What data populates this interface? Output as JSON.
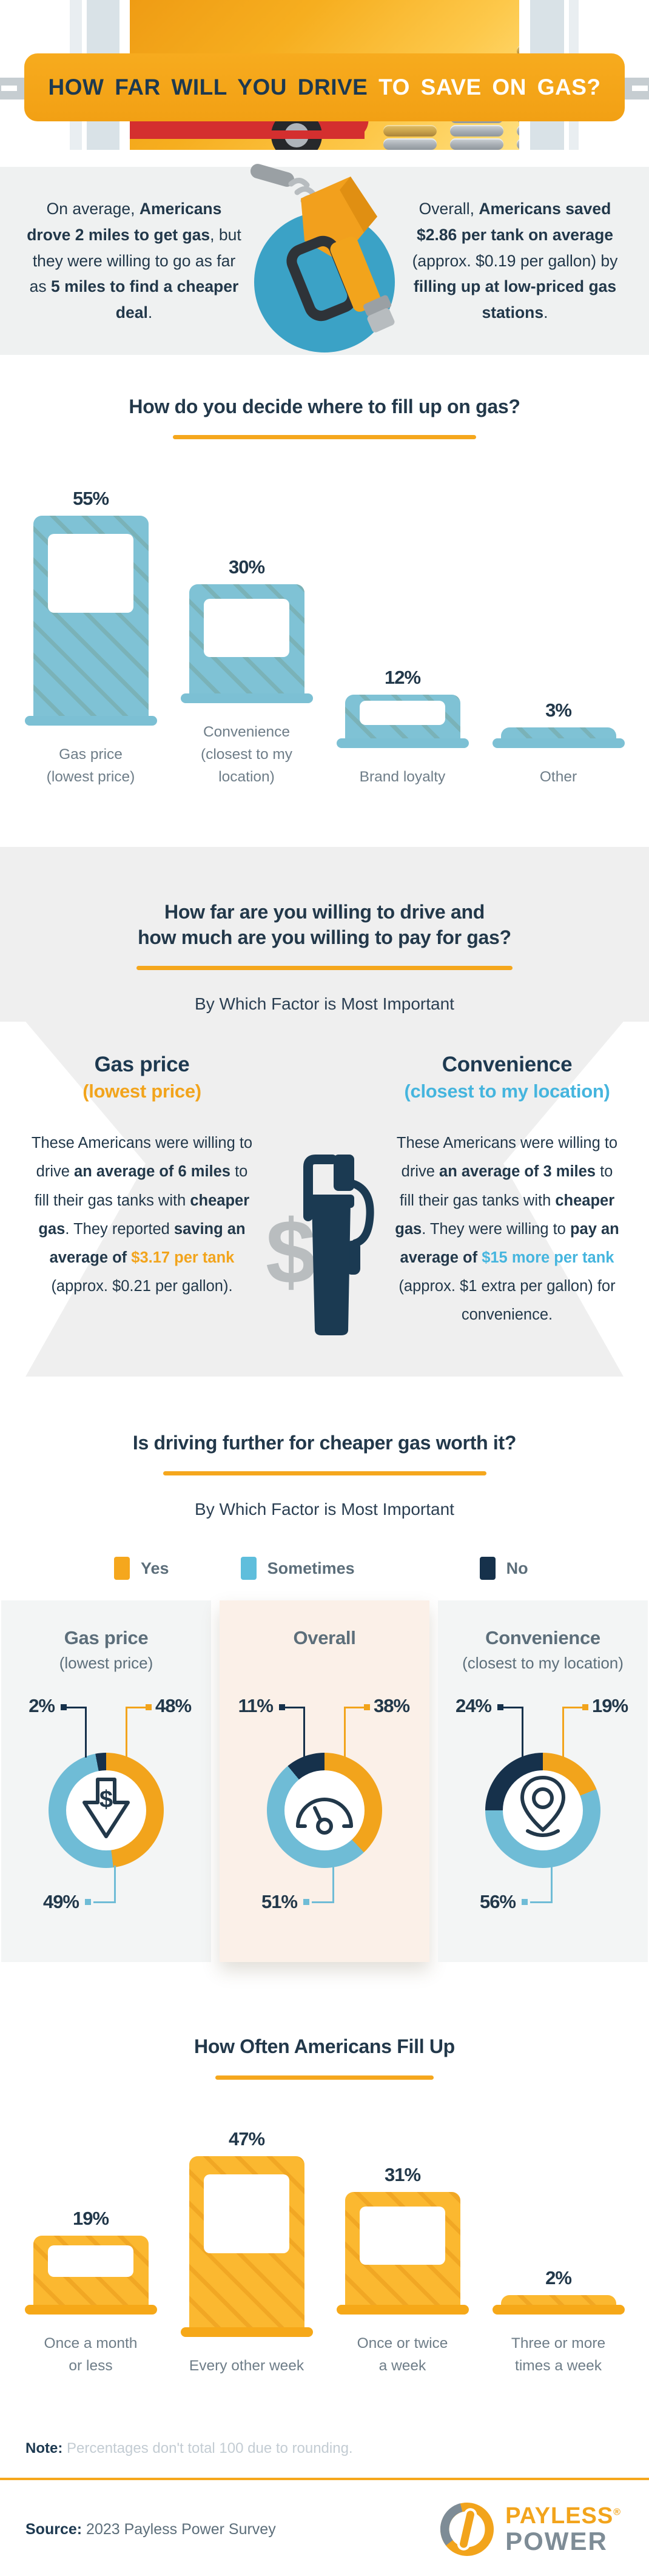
{
  "colors": {
    "orange": "#F2A41C",
    "yellow_accent": "#F5A71D",
    "blue": "#45B5DE",
    "donut_blue": "#6FBCD6",
    "bar_blue": "#7FC2D5",
    "bar_orange": "#FBB830",
    "navy": "#1D3950",
    "legend_no_navy": "#16314B",
    "gray_label": "#6E7D88",
    "panel_title_gray": "#5C6E7A",
    "note_gray": "#C3CCD3",
    "intro_bg": "#EFF1F1",
    "section_bg": "#EFEFEF",
    "highlight_panel_bg": "#FBF0E8",
    "panel_bg": "#F3F5F5",
    "circle_blue": "#3BA2C6"
  },
  "header": {
    "title_dark": "HOW FAR WILL YOU DRIVE",
    "title_light": " TO SAVE ON GAS?"
  },
  "intro": {
    "left_text": [
      {
        "t": "On average, "
      },
      {
        "t": "Americans drove 2 miles to get gas",
        "b": true
      },
      {
        "t": ", but they were willing to go as far as "
      },
      {
        "t": "5 miles to find a cheaper deal",
        "b": true
      },
      {
        "t": "."
      }
    ],
    "right_text": [
      {
        "t": "Overall, "
      },
      {
        "t": "Americans saved $2.86 per tank on average",
        "b": true
      },
      {
        "t": " (approx. $0.19 per gallon) by "
      },
      {
        "t": "filling up at low-priced gas stations",
        "b": true
      },
      {
        "t": "."
      }
    ]
  },
  "drive_pay": {
    "title_line1": "How far are you willing to drive and",
    "title_line2": "how much are you willing to pay for gas?",
    "subtitle": "By Which Factor is Most Important",
    "left": {
      "heading": "Gas price",
      "subheading": "(lowest price)",
      "para": [
        {
          "t": "These Americans were willing to drive "
        },
        {
          "t": "an average of 6 miles",
          "b": true
        },
        {
          "t": " to fill their gas tanks with "
        },
        {
          "t": "cheaper gas",
          "b": true
        },
        {
          "t": ". They reported "
        },
        {
          "t": "saving an average of ",
          "b": true
        },
        {
          "t": "$3.17 per tank",
          "b": true,
          "c": "orange"
        },
        {
          "t": " (approx. $0.21 per gallon)."
        }
      ]
    },
    "right": {
      "heading": "Convenience",
      "subheading": "(closest to my location)",
      "para": [
        {
          "t": "These Americans were willing to drive "
        },
        {
          "t": "an average of 3 miles",
          "b": true
        },
        {
          "t": " to fill their gas tanks with "
        },
        {
          "t": "cheaper gas",
          "b": true
        },
        {
          "t": ". They were willing to "
        },
        {
          "t": "pay an average of ",
          "b": true
        },
        {
          "t": "$15 more per tank",
          "b": true,
          "c": "blue"
        },
        {
          "t": " (approx. $1 extra per gallon) for convenience."
        }
      ]
    }
  },
  "worth_it": {
    "subtitle": "By Which Factor is Most Important",
    "legend": [
      {
        "label": "Yes",
        "color": "#F5A71D"
      },
      {
        "label": "Sometimes",
        "color": "#5FBEDC"
      },
      {
        "label": "No",
        "color": "#16314B"
      }
    ]
  },
  "note": {
    "label": "Note:",
    "text": " Percentages don't total 100 due to rounding."
  },
  "footer": {
    "source_label": "Source:",
    "source_text": " 2023 Payless Power Survey",
    "logo_line1": "PAYLESS",
    "logo_reg": "®",
    "logo_line2": "POWER"
  },
  "chart_data": [
    {
      "id": "decide",
      "type": "bar",
      "title": "How do you decide where to fill up on gas?",
      "categories": [
        [
          "Gas price",
          "(lowest price)"
        ],
        [
          "Convenience",
          "(closest to my location)"
        ],
        [
          "Brand loyalty"
        ],
        [
          "Other"
        ]
      ],
      "values": [
        55,
        30,
        12,
        3
      ],
      "unit": "%",
      "theme": "blue",
      "ylim": [
        0,
        60
      ],
      "legend_position": "none",
      "grid": false
    },
    {
      "id": "worth_it_donuts",
      "type": "pie",
      "title": "Is driving further for cheaper gas worth it?",
      "legend": [
        "Yes",
        "Sometimes",
        "No"
      ],
      "panels": [
        {
          "title": "Gas price",
          "subtitle": "(lowest price)",
          "icon": "price-down-icon",
          "highlight": false,
          "values": {
            "yes": 48,
            "sometimes": 49,
            "no": 2
          }
        },
        {
          "title": "Overall",
          "subtitle": "",
          "icon": "gauge-icon",
          "highlight": true,
          "values": {
            "yes": 38,
            "sometimes": 51,
            "no": 11
          }
        },
        {
          "title": "Convenience",
          "subtitle": "(closest to my location)",
          "icon": "location-pin-icon",
          "highlight": false,
          "values": {
            "yes": 19,
            "sometimes": 56,
            "no": 24
          }
        }
      ]
    },
    {
      "id": "fillup",
      "type": "bar",
      "title": "How Often Americans Fill Up",
      "categories": [
        [
          "Once a month",
          "or less"
        ],
        [
          "Every other week"
        ],
        [
          "Once or twice",
          "a week"
        ],
        [
          "Three or more",
          "times a week"
        ]
      ],
      "values": [
        19,
        47,
        31,
        2
      ],
      "unit": "%",
      "theme": "orange",
      "ylim": [
        0,
        60
      ],
      "legend_position": "none",
      "grid": false
    }
  ]
}
